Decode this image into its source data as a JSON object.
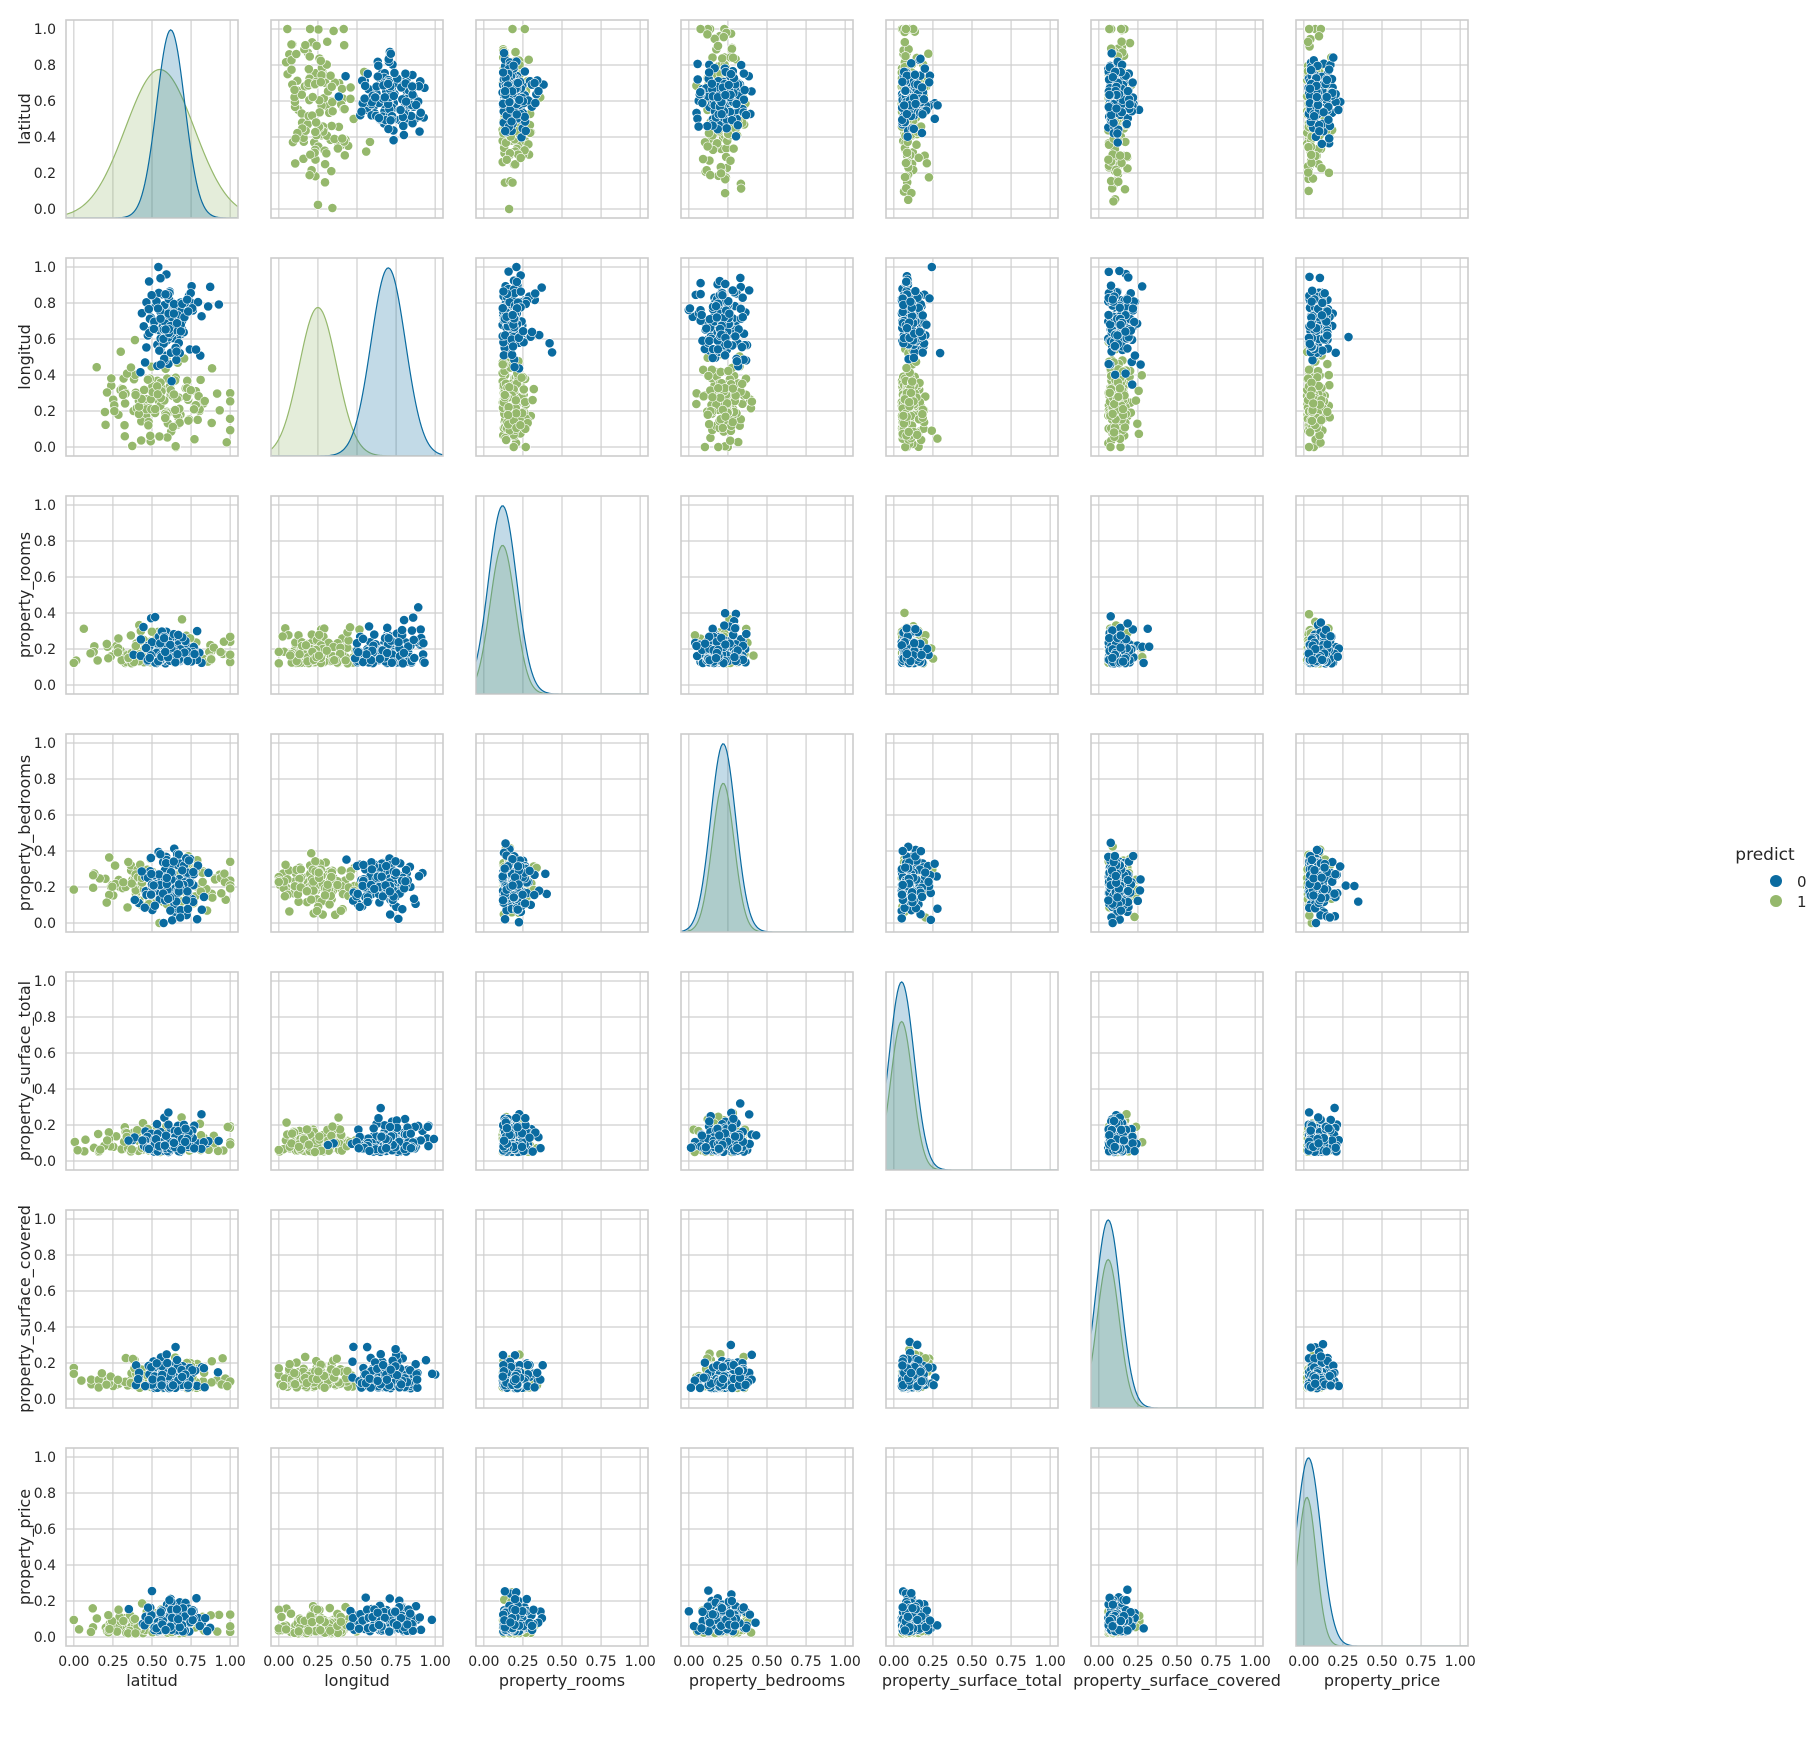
{
  "chart_data": {
    "type": "scatter",
    "title": "",
    "variables": [
      "latitud",
      "longitud",
      "property_rooms",
      "property_bedrooms",
      "property_surface_total",
      "property_surface_covered",
      "property_price"
    ],
    "x_tick_labels": [
      "0.00",
      "0.25",
      "0.50",
      "0.75",
      "1.00"
    ],
    "y_tick_labels": [
      "0.0",
      "0.2",
      "0.4",
      "0.6",
      "0.8",
      "1.0"
    ],
    "xlim": [
      -0.05,
      1.05
    ],
    "ylim": [
      -0.05,
      1.05
    ],
    "grid": true,
    "diagonal": "kde",
    "legend": {
      "title": "predict",
      "placement": "center-right",
      "entries": [
        {
          "label": "0",
          "color": "#0a6ba0"
        },
        {
          "label": "1",
          "color": "#95b86c"
        }
      ]
    },
    "clusters": {
      "latitud": {
        "0": {
          "center": 0.62,
          "spread": 0.09
        },
        "1": {
          "center": 0.55,
          "spread": 0.22
        }
      },
      "longitud": {
        "0": {
          "center": 0.7,
          "spread": 0.11
        },
        "1": {
          "center": 0.25,
          "spread": 0.12
        }
      },
      "property_rooms": {
        "0": {
          "center": 0.12,
          "spread": 0.09
        },
        "1": {
          "center": 0.12,
          "spread": 0.08
        }
      },
      "property_bedrooms": {
        "0": {
          "center": 0.22,
          "spread": 0.08
        },
        "1": {
          "center": 0.22,
          "spread": 0.07
        }
      },
      "property_surface_total": {
        "0": {
          "center": 0.05,
          "spread": 0.08
        },
        "1": {
          "center": 0.05,
          "spread": 0.07
        }
      },
      "property_surface_covered": {
        "0": {
          "center": 0.06,
          "spread": 0.08
        },
        "1": {
          "center": 0.06,
          "spread": 0.07
        }
      },
      "property_price": {
        "0": {
          "center": 0.03,
          "spread": 0.08
        },
        "1": {
          "center": 0.02,
          "spread": 0.06
        }
      }
    }
  }
}
